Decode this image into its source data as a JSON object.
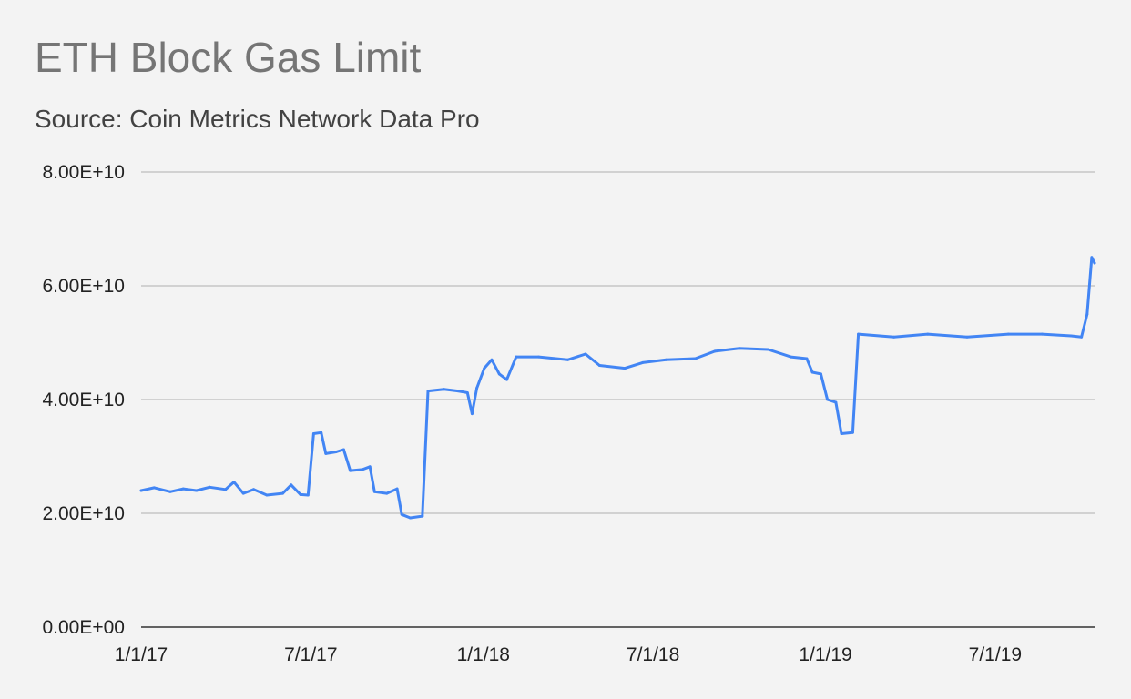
{
  "chart_data": {
    "type": "line",
    "title": "ETH Block Gas Limit",
    "subtitle": "Source: Coin Metrics Network Data Pro",
    "xlabel": "",
    "ylabel": "",
    "x_range": [
      "2017-01-01",
      "2019-10-15"
    ],
    "ylim": [
      0,
      80000000000
    ],
    "yticks": [
      {
        "value": 0,
        "label": "0.00E+00"
      },
      {
        "value": 20000000000,
        "label": "2.00E+10"
      },
      {
        "value": 40000000000,
        "label": "4.00E+10"
      },
      {
        "value": 60000000000,
        "label": "6.00E+10"
      },
      {
        "value": 80000000000,
        "label": "8.00E+10"
      }
    ],
    "xticks": [
      {
        "date": "2017-01-01",
        "label": "1/1/17"
      },
      {
        "date": "2017-07-01",
        "label": "7/1/17"
      },
      {
        "date": "2018-01-01",
        "label": "1/1/18"
      },
      {
        "date": "2018-07-01",
        "label": "7/1/18"
      },
      {
        "date": "2019-01-01",
        "label": "1/1/19"
      },
      {
        "date": "2019-07-01",
        "label": "7/1/19"
      }
    ],
    "grid": true,
    "legend": "none",
    "line_color": "#4285f4",
    "series": [
      {
        "values": [
          [
            "2017-01-01",
            24000000000
          ],
          [
            "2017-01-15",
            24500000000
          ],
          [
            "2017-02-01",
            23800000000
          ],
          [
            "2017-02-15",
            24300000000
          ],
          [
            "2017-03-01",
            24000000000
          ],
          [
            "2017-03-15",
            24600000000
          ],
          [
            "2017-04-01",
            24200000000
          ],
          [
            "2017-04-10",
            25500000000
          ],
          [
            "2017-04-20",
            23500000000
          ],
          [
            "2017-05-01",
            24200000000
          ],
          [
            "2017-05-15",
            23200000000
          ],
          [
            "2017-06-01",
            23500000000
          ],
          [
            "2017-06-10",
            25000000000
          ],
          [
            "2017-06-20",
            23300000000
          ],
          [
            "2017-06-28",
            23200000000
          ],
          [
            "2017-07-04",
            34000000000
          ],
          [
            "2017-07-12",
            34200000000
          ],
          [
            "2017-07-17",
            30500000000
          ],
          [
            "2017-07-28",
            30800000000
          ],
          [
            "2017-08-05",
            31200000000
          ],
          [
            "2017-08-12",
            27500000000
          ],
          [
            "2017-08-25",
            27700000000
          ],
          [
            "2017-09-02",
            28200000000
          ],
          [
            "2017-09-07",
            23800000000
          ],
          [
            "2017-09-20",
            23500000000
          ],
          [
            "2017-10-01",
            24300000000
          ],
          [
            "2017-10-06",
            19800000000
          ],
          [
            "2017-10-15",
            19200000000
          ],
          [
            "2017-10-28",
            19500000000
          ],
          [
            "2017-11-03",
            41500000000
          ],
          [
            "2017-11-20",
            41800000000
          ],
          [
            "2017-12-05",
            41500000000
          ],
          [
            "2017-12-15",
            41200000000
          ],
          [
            "2017-12-20",
            37500000000
          ],
          [
            "2017-12-25",
            42000000000
          ],
          [
            "2018-01-02",
            45500000000
          ],
          [
            "2018-01-10",
            47000000000
          ],
          [
            "2018-01-18",
            44500000000
          ],
          [
            "2018-01-26",
            43500000000
          ],
          [
            "2018-02-05",
            47500000000
          ],
          [
            "2018-03-01",
            47500000000
          ],
          [
            "2018-04-01",
            47000000000
          ],
          [
            "2018-04-20",
            48000000000
          ],
          [
            "2018-05-05",
            46000000000
          ],
          [
            "2018-06-01",
            45500000000
          ],
          [
            "2018-06-20",
            46500000000
          ],
          [
            "2018-07-15",
            47000000000
          ],
          [
            "2018-08-15",
            47200000000
          ],
          [
            "2018-09-05",
            48500000000
          ],
          [
            "2018-10-01",
            49000000000
          ],
          [
            "2018-11-01",
            48800000000
          ],
          [
            "2018-11-25",
            47500000000
          ],
          [
            "2018-12-12",
            47200000000
          ],
          [
            "2018-12-18",
            44800000000
          ],
          [
            "2018-12-27",
            44500000000
          ],
          [
            "2019-01-03",
            40000000000
          ],
          [
            "2019-01-12",
            39500000000
          ],
          [
            "2019-01-18",
            34000000000
          ],
          [
            "2019-01-30",
            34200000000
          ],
          [
            "2019-02-05",
            51500000000
          ],
          [
            "2019-03-15",
            51000000000
          ],
          [
            "2019-04-20",
            51500000000
          ],
          [
            "2019-06-01",
            51000000000
          ],
          [
            "2019-07-15",
            51500000000
          ],
          [
            "2019-08-20",
            51500000000
          ],
          [
            "2019-09-20",
            51200000000
          ],
          [
            "2019-10-01",
            51000000000
          ],
          [
            "2019-10-07",
            55000000000
          ],
          [
            "2019-10-12",
            65000000000
          ],
          [
            "2019-10-15",
            64000000000
          ]
        ]
      }
    ]
  }
}
